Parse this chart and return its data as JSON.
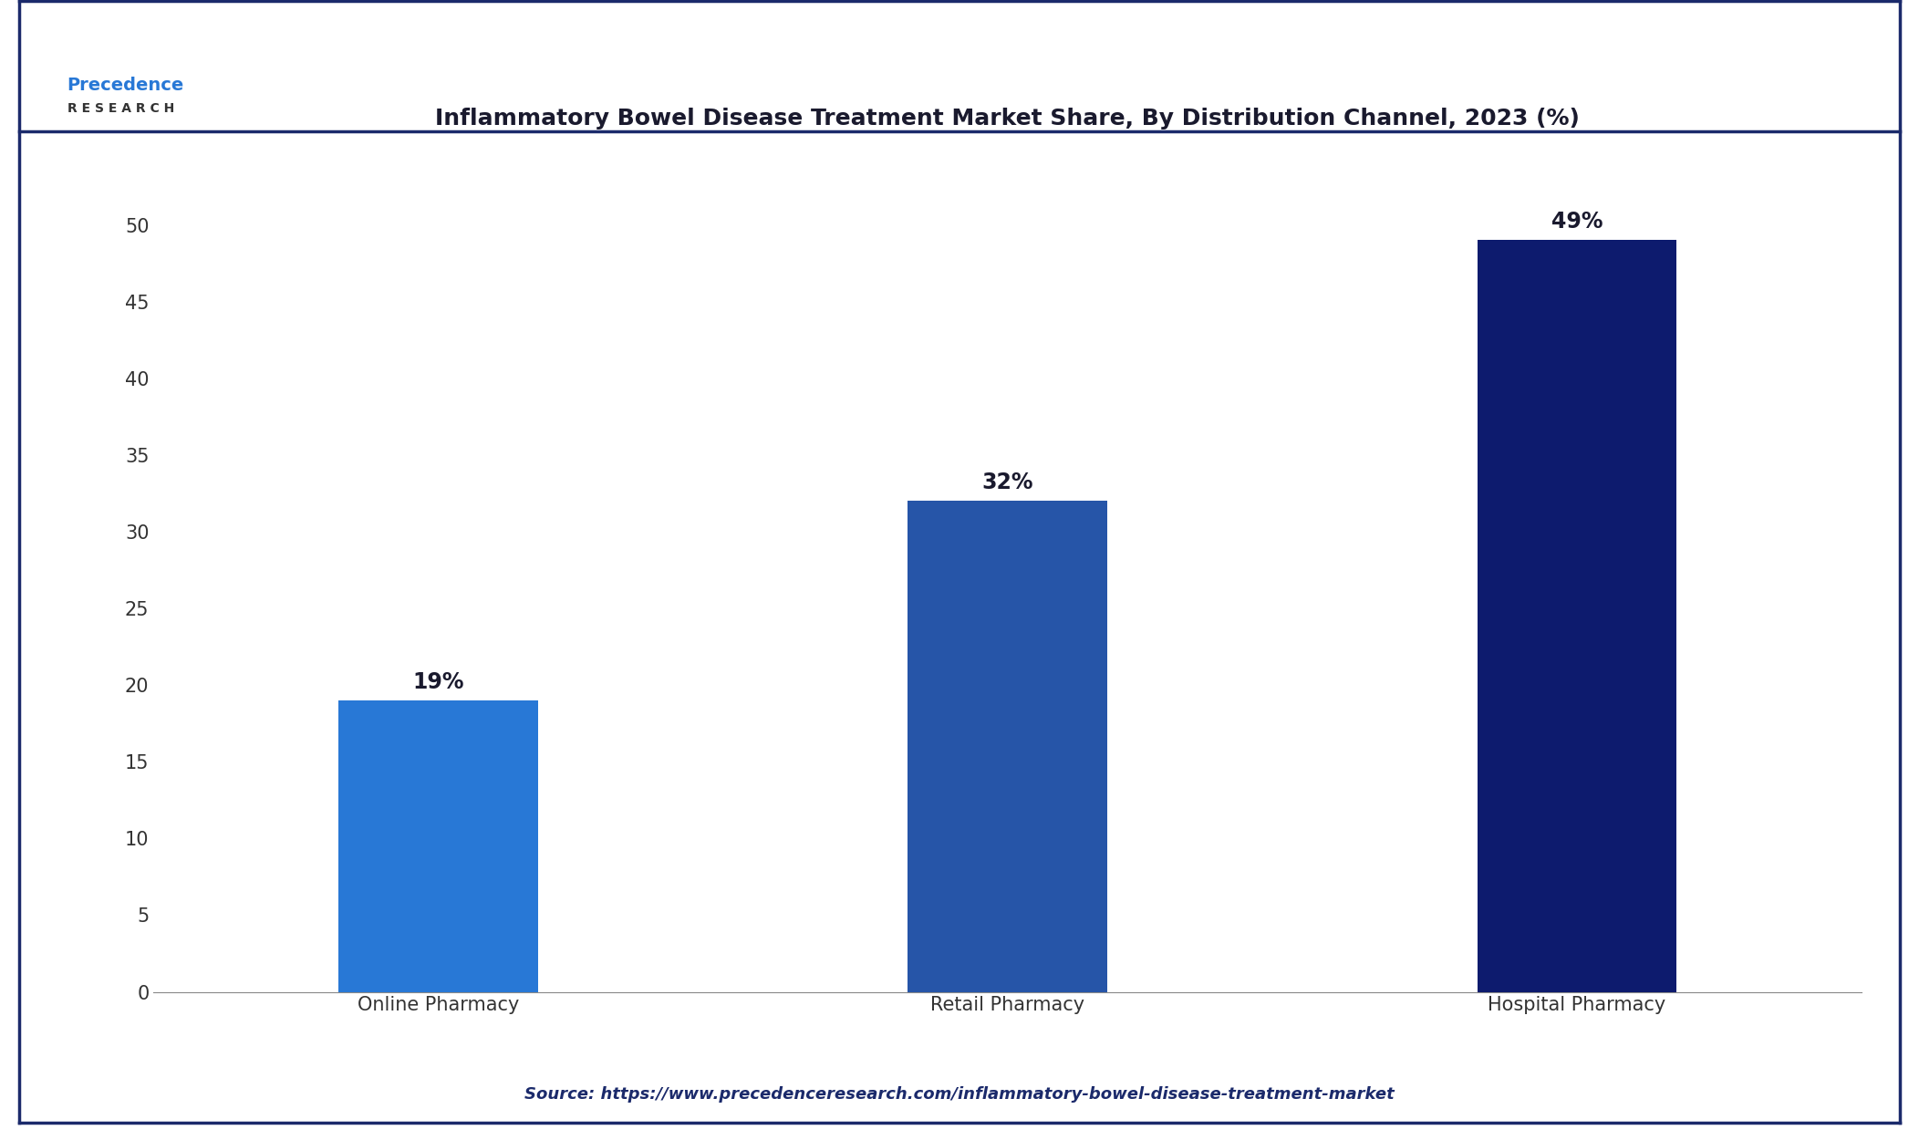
{
  "title": "Inflammatory Bowel Disease Treatment Market Share, By Distribution Channel, 2023 (%)",
  "categories": [
    "Online Pharmacy",
    "Retail Pharmacy",
    "Hospital Pharmacy"
  ],
  "values": [
    19,
    32,
    49
  ],
  "bar_colors": [
    "#2878D6",
    "#2655A8",
    "#0D1B6E"
  ],
  "bar_labels": [
    "19%",
    "32%",
    "49%"
  ],
  "ylim": [
    0,
    55
  ],
  "yticks": [
    0,
    5,
    10,
    15,
    20,
    25,
    30,
    35,
    40,
    45,
    50
  ],
  "background_color": "#FFFFFF",
  "plot_bg_color": "#FFFFFF",
  "title_fontsize": 18,
  "label_fontsize": 17,
  "tick_fontsize": 15,
  "source_text": "Source: https://www.precedenceresearch.com/inflammatory-bowel-disease-treatment-market",
  "source_fontsize": 13,
  "border_color": "#1B2A6B",
  "logo_text_main": "Precedence",
  "logo_text_sub": "R E S E A R C H",
  "bar_width": 0.35
}
